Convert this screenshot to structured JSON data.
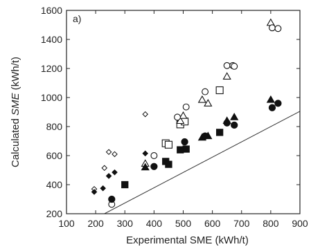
{
  "chart_data": {
    "type": "scatter",
    "panel_label": "a)",
    "xlabel": "Experimental SME (kWh/t)",
    "ylabel_prefix": "Calculated ",
    "ylabel_italic": "SME",
    "ylabel_suffix": " (kWh/t)",
    "xlim": [
      100,
      900
    ],
    "ylim": [
      200,
      1600
    ],
    "xticks": [
      100,
      200,
      300,
      400,
      500,
      600,
      700,
      800,
      900
    ],
    "yticks": [
      200,
      400,
      600,
      800,
      1000,
      1200,
      1400,
      1600
    ],
    "grid": false,
    "reference_line": {
      "x": [
        230,
        900
      ],
      "y": [
        200,
        905
      ]
    },
    "series": [
      {
        "marker": "diamond",
        "filled": false,
        "points": [
          [
            195,
            370
          ],
          [
            230,
            515
          ],
          [
            245,
            625
          ],
          [
            265,
            610
          ],
          [
            370,
            885
          ]
        ]
      },
      {
        "marker": "diamond",
        "filled": true,
        "points": [
          [
            195,
            350
          ],
          [
            225,
            375
          ],
          [
            245,
            460
          ],
          [
            265,
            485
          ],
          [
            370,
            615
          ]
        ]
      },
      {
        "marker": "square",
        "filled": false,
        "points": [
          [
            440,
            685
          ],
          [
            450,
            675
          ],
          [
            490,
            815
          ],
          [
            505,
            835
          ],
          [
            625,
            1050
          ]
        ]
      },
      {
        "marker": "square",
        "filled": true,
        "points": [
          [
            300,
            400
          ],
          [
            440,
            560
          ],
          [
            450,
            540
          ],
          [
            490,
            640
          ],
          [
            510,
            645
          ],
          [
            625,
            760
          ]
        ]
      },
      {
        "marker": "triangle",
        "filled": false,
        "points": [
          [
            370,
            545
          ],
          [
            490,
            840
          ],
          [
            500,
            875
          ],
          [
            565,
            985
          ],
          [
            585,
            960
          ],
          [
            650,
            1145
          ],
          [
            800,
            1515
          ]
        ]
      },
      {
        "marker": "triangle",
        "filled": true,
        "points": [
          [
            370,
            520
          ],
          [
            565,
            725
          ],
          [
            585,
            735
          ],
          [
            650,
            840
          ],
          [
            675,
            865
          ],
          [
            800,
            985
          ]
        ]
      },
      {
        "marker": "circle",
        "filled": false,
        "points": [
          [
            255,
            265
          ],
          [
            400,
            600
          ],
          [
            480,
            865
          ],
          [
            510,
            935
          ],
          [
            575,
            1040
          ],
          [
            650,
            1220
          ],
          [
            670,
            1220
          ],
          [
            675,
            1215
          ],
          [
            805,
            1480
          ],
          [
            825,
            1475
          ]
        ]
      },
      {
        "marker": "circle",
        "filled": true,
        "points": [
          [
            255,
            300
          ],
          [
            400,
            525
          ],
          [
            505,
            695
          ],
          [
            575,
            735
          ],
          [
            650,
            825
          ],
          [
            675,
            810
          ],
          [
            805,
            930
          ],
          [
            825,
            960
          ]
        ]
      }
    ]
  }
}
